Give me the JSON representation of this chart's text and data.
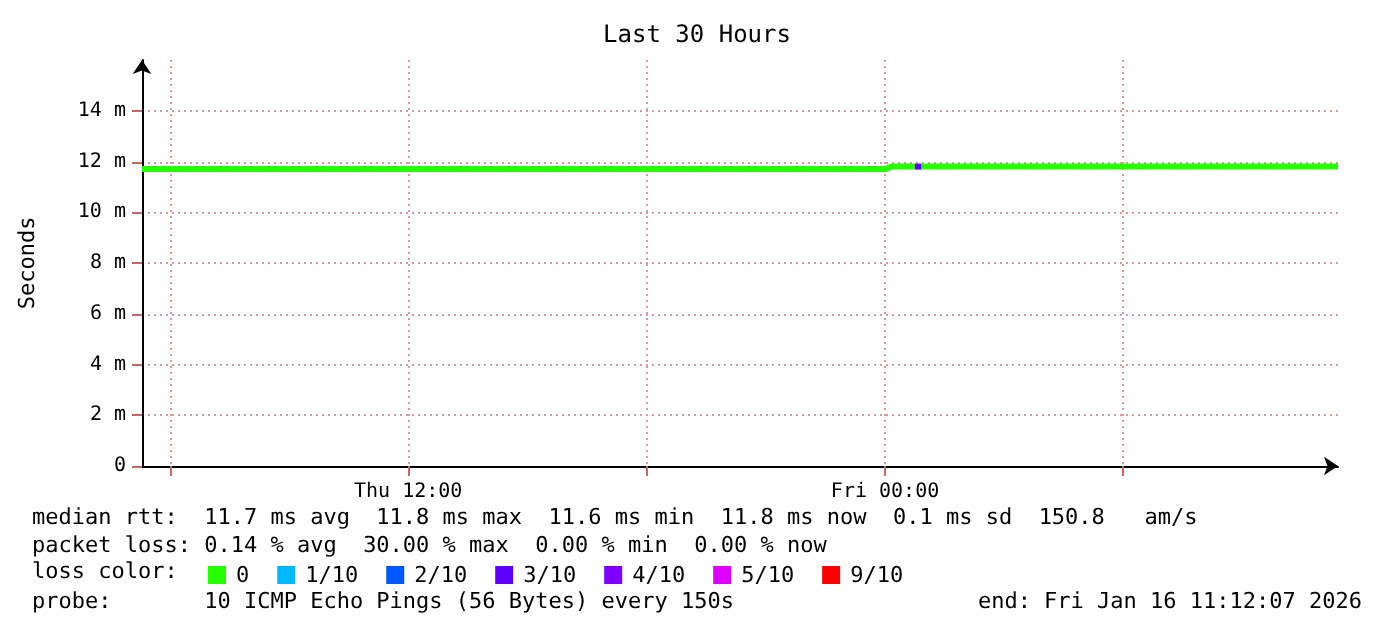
{
  "chart_data": {
    "type": "line",
    "title": "Last 30 Hours",
    "ylabel": "Seconds",
    "xlim": [
      "2026-01-15T05:18",
      "2026-01-16T11:24"
    ],
    "xticks": [
      {
        "value": "2026-01-15T06:00",
        "label": null
      },
      {
        "value": "2026-01-15T12:00",
        "label": "Thu 12:00"
      },
      {
        "value": "2026-01-15T18:00",
        "label": null
      },
      {
        "value": "2026-01-16T00:00",
        "label": "Fri 00:00"
      },
      {
        "value": "2026-01-16T06:00",
        "label": null
      }
    ],
    "ylim": [
      0,
      16
    ],
    "yticks": [
      {
        "value": 0,
        "label": "0"
      },
      {
        "value": 2,
        "label": "2 m"
      },
      {
        "value": 4,
        "label": "4 m"
      },
      {
        "value": 6,
        "label": "6 m"
      },
      {
        "value": 8,
        "label": "8 m"
      },
      {
        "value": 10,
        "label": "10 m"
      },
      {
        "value": 12,
        "label": "12 m"
      },
      {
        "value": 14,
        "label": "14 m"
      }
    ],
    "grid": true,
    "legend": "bottom",
    "legend_title": "loss color:",
    "marker": "none",
    "series": [
      {
        "name": "0",
        "color": "#26ff00",
        "x": [
          "2026-01-15T05:18",
          "2026-01-15T08:00",
          "2026-01-15T12:00",
          "2026-01-15T16:00",
          "2026-01-15T20:00",
          "2026-01-16T00:00",
          "2026-01-16T00:10",
          "2026-01-16T00:45",
          null,
          "2026-01-16T00:55",
          "2026-01-16T04:00",
          "2026-01-16T08:00",
          "2026-01-16T11:24"
        ],
        "values": [
          11.7,
          11.7,
          11.7,
          11.7,
          11.7,
          11.7,
          11.8,
          11.8,
          null,
          11.8,
          11.8,
          11.8,
          11.8
        ]
      },
      {
        "name": "1/10",
        "color": "#00b8ff"
      },
      {
        "name": "2/10",
        "color": "#0059ff"
      },
      {
        "name": "3/10",
        "color": "#5e00ff",
        "x": [
          "2026-01-16T00:45",
          "2026-01-16T00:55"
        ],
        "values": [
          11.8,
          11.8
        ]
      },
      {
        "name": "4/10",
        "color": "#7e00ff"
      },
      {
        "name": "5/10",
        "color": "#dd00ff"
      },
      {
        "name": "9/10",
        "color": "#ff0000"
      }
    ],
    "annotations": [
      "median rtt:  11.7 ms avg  11.8 ms max  11.6 ms min  11.8 ms now  0.1 ms sd  150.8   am/s",
      "packet loss: 0.14 % avg  30.00 % max  0.00 % min  0.00 % now",
      "probe:       10 ICMP Echo Pings (56 Bytes) every 150s",
      "end: Fri Jan 16 11:12:07 2026"
    ]
  }
}
